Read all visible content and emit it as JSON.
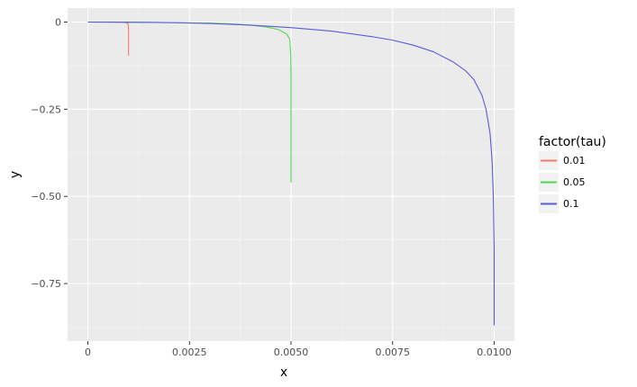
{
  "chart_data": {
    "type": "line",
    "xlabel": "x",
    "ylabel": "y",
    "xlim": [
      -0.0005,
      0.0105
    ],
    "ylim": [
      -0.915,
      0.04
    ],
    "x_ticks": [
      0,
      0.0025,
      0.005,
      0.0075,
      0.01
    ],
    "x_tick_labels": [
      "0",
      "0.0025",
      "0.0050",
      "0.0075",
      "0.0100"
    ],
    "y_ticks": [
      0,
      -0.25,
      -0.5,
      -0.75
    ],
    "y_tick_labels": [
      "0",
      "−0.25",
      "−0.50",
      "−0.75"
    ],
    "grid": true,
    "legend": {
      "title": "factor(tau)",
      "position": "right"
    },
    "series": [
      {
        "name": "0.01",
        "color": "#f8766d",
        "x": [
          0,
          0.0002,
          0.0004,
          0.0006,
          0.0008,
          0.0009,
          0.00095,
          0.00099,
          0.001,
          0.001
        ],
        "y": [
          0,
          -0.0001,
          -0.0002,
          -0.0004,
          -0.0008,
          -0.0012,
          -0.002,
          -0.005,
          -0.02,
          -0.096
        ]
      },
      {
        "name": "0.05",
        "color": "#52d84a",
        "x": [
          0,
          0.001,
          0.002,
          0.003,
          0.0035,
          0.004,
          0.0044,
          0.0047,
          0.0049,
          0.00497,
          0.004995,
          0.005,
          0.005,
          0.005
        ],
        "y": [
          0,
          -0.0005,
          -0.0015,
          -0.003,
          -0.005,
          -0.009,
          -0.014,
          -0.022,
          -0.035,
          -0.05,
          -0.1,
          -0.16,
          -0.3,
          -0.46
        ]
      },
      {
        "name": "0.1",
        "color": "#5a5bdc",
        "x": [
          0,
          0.001,
          0.002,
          0.003,
          0.004,
          0.005,
          0.006,
          0.007,
          0.0075,
          0.008,
          0.0085,
          0.009,
          0.0093,
          0.0095,
          0.0097,
          0.0098,
          0.0099,
          0.00995,
          0.00998,
          0.01,
          0.01
        ],
        "y": [
          0,
          -0.0005,
          -0.0015,
          -0.004,
          -0.009,
          -0.016,
          -0.026,
          -0.042,
          -0.052,
          -0.066,
          -0.085,
          -0.115,
          -0.14,
          -0.165,
          -0.21,
          -0.25,
          -0.32,
          -0.4,
          -0.5,
          -0.65,
          -0.87
        ]
      }
    ]
  }
}
